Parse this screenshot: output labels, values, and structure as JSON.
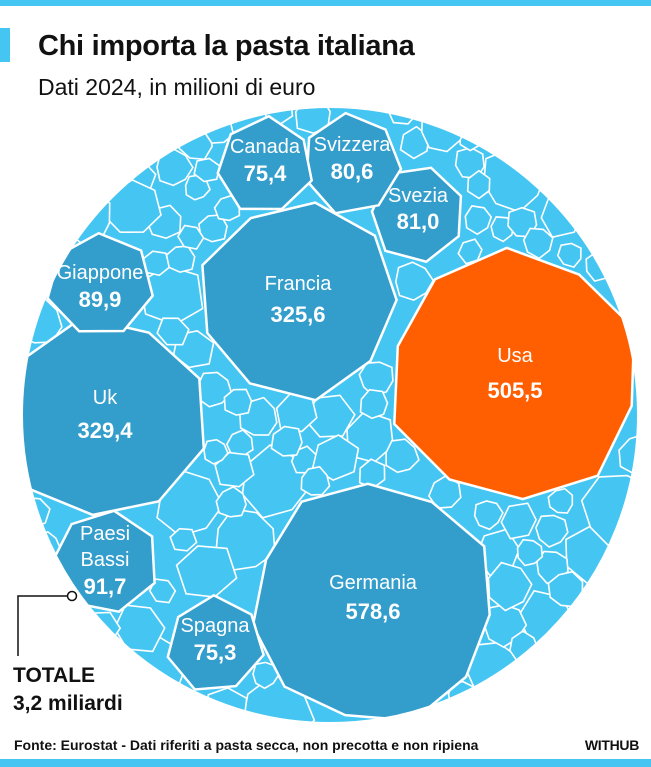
{
  "title": "Chi importa la pasta italiana",
  "subtitle": "Dati 2024, in milioni di euro",
  "total": {
    "label": "TOTALE",
    "value": "3,2 miliardi"
  },
  "footer": "Fonte: Eurostat - Dati riferiti a pasta secca, non precotta e non ripiena",
  "brand": "WITHUB",
  "colors": {
    "background_cell": "#45c6f2",
    "country_cell": "#339dcb",
    "highlight": "#ff5f00",
    "edge": "#ffffff"
  },
  "chart_data": {
    "type": "voronoi-bubble",
    "title": "Chi importa la pasta italiana",
    "subtitle": "Dati 2024, in milioni di euro",
    "unit": "milioni di euro",
    "total": "3,2 miliardi",
    "items": [
      {
        "name": "Germania",
        "value": 578.6,
        "label": "578,6",
        "highlight": false
      },
      {
        "name": "Usa",
        "value": 505.5,
        "label": "505,5",
        "highlight": true
      },
      {
        "name": "Uk",
        "value": 329.4,
        "label": "329,4",
        "highlight": false
      },
      {
        "name": "Francia",
        "value": 325.6,
        "label": "325,6",
        "highlight": false
      },
      {
        "name": "Paesi Bassi",
        "value": 91.7,
        "label": "91,7",
        "highlight": false
      },
      {
        "name": "Giappone",
        "value": 89.9,
        "label": "89,9",
        "highlight": false
      },
      {
        "name": "Svezia",
        "value": 81.0,
        "label": "81,0",
        "highlight": false
      },
      {
        "name": "Svizzera",
        "value": 80.6,
        "label": "80,6",
        "highlight": false
      },
      {
        "name": "Canada",
        "value": 75.4,
        "label": "75,4",
        "highlight": false
      },
      {
        "name": "Spagna",
        "value": 75.3,
        "label": "75,3",
        "highlight": false
      }
    ]
  }
}
